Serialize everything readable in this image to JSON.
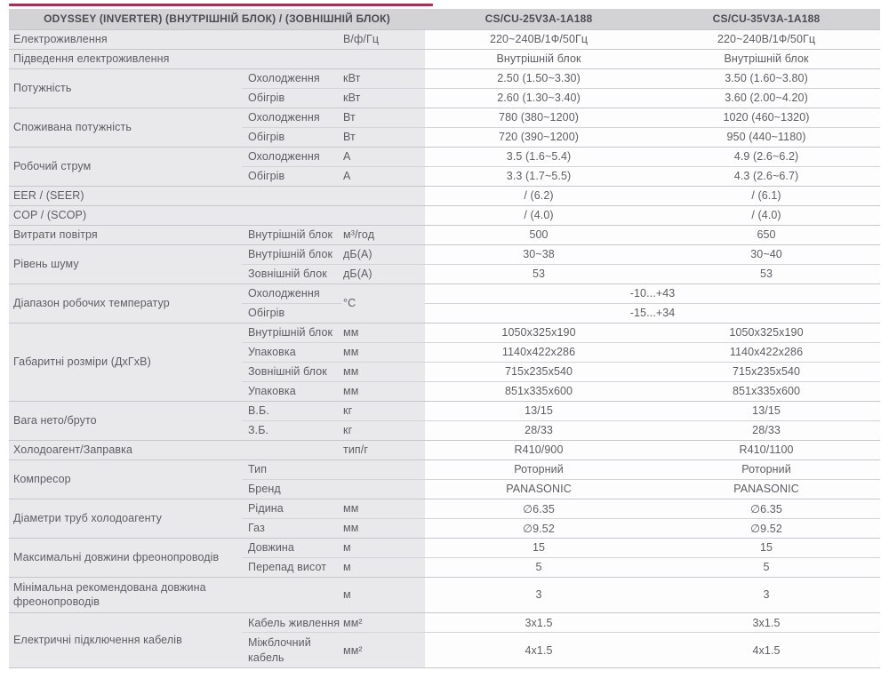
{
  "accent_color": "#b52a52",
  "colors": {
    "header_bg": "#d3d3d6",
    "label_bg": "#e9e9eb",
    "value_bg": "#fdfdfe",
    "border_strong": "#c6c6cb",
    "border_soft": "#d4d4d8"
  },
  "header": {
    "title": "ODYSSEY (INVERTER) (ВНУТРІШНІЙ БЛОК) / (ЗОВНІШНІЙ БЛОК)",
    "models": [
      "CS/CU-25V3A-1A188",
      "CS/CU-35V3A-1A188"
    ]
  },
  "groups": [
    {
      "label": "Електроживлення",
      "rows": [
        {
          "unit": "В/ф/Гц",
          "v1": "220~240В/1Ф/50Гц",
          "v2": "220~240В/1Ф/50Гц"
        }
      ]
    },
    {
      "label": "Підведення електроживлення",
      "rows": [
        {
          "v1": "Внутрішній блок",
          "v2": "Внутрішній блок"
        }
      ]
    },
    {
      "label": "Потужність",
      "rows": [
        {
          "sub": "Охолодження",
          "unit": "кВт",
          "v1": "2.50 (1.50~3.30)",
          "v2": "3.50 (1.60~3.80)"
        },
        {
          "sub": "Обігрів",
          "unit": "кВт",
          "v1": "2.60 (1.30~3.40)",
          "v2": "3.60 (2.00~4.20)"
        }
      ]
    },
    {
      "label": "Споживана потужність",
      "rows": [
        {
          "sub": "Охолодження",
          "unit": "Вт",
          "v1": "780 (380~1200)",
          "v2": "1020 (460~1320)"
        },
        {
          "sub": "Обігрів",
          "unit": "Вт",
          "v1": "720 (390~1200)",
          "v2": "950 (440~1180)"
        }
      ]
    },
    {
      "label": "Робочий струм",
      "rows": [
        {
          "sub": "Охолодження",
          "unit": "А",
          "v1": "3.5 (1.6~5.4)",
          "v2": "4.9 (2.6~6.2)"
        },
        {
          "sub": "Обігрів",
          "unit": "А",
          "v1": "3.3 (1.7~5.5)",
          "v2": "4.3 (2.6~6.7)"
        }
      ]
    },
    {
      "label": "EER / (SEER)",
      "rows": [
        {
          "v1": "/ (6.2)",
          "v2": "/ (6.1)"
        }
      ]
    },
    {
      "label": "COP / (SCOP)",
      "rows": [
        {
          "v1": "/ (4.0)",
          "v2": "/ (4.0)"
        }
      ]
    },
    {
      "label": "Витрати повітря",
      "rows": [
        {
          "sub": "Внутрішній блок",
          "unit": "м³/год",
          "v1": "500",
          "v2": "650"
        }
      ]
    },
    {
      "label": "Рівень шуму",
      "rows": [
        {
          "sub": "Внутрішній блок",
          "unit": "дБ(А)",
          "v1": "30~38",
          "v2": "30~40"
        },
        {
          "sub": "Зовнішній блок",
          "unit": "дБ(А)",
          "v1": "53",
          "v2": "53"
        }
      ]
    },
    {
      "label": "Діапазон робочих температур",
      "unit": "°С",
      "rows": [
        {
          "sub": "Охолодження",
          "span_value": "-10...+43"
        },
        {
          "sub": "Обігрів",
          "span_value": "-15...+34"
        }
      ]
    },
    {
      "label": "Габаритні розміри (ДхГхВ)",
      "rows": [
        {
          "sub": "Внутрішній блок",
          "unit": "мм",
          "v1": "1050x325x190",
          "v2": "1050x325x190"
        },
        {
          "sub": "Упаковка",
          "unit": "мм",
          "v1": "1140x422x286",
          "v2": "1140x422x286"
        },
        {
          "sub": "Зовнішній блок",
          "unit": "мм",
          "v1": "715x235x540",
          "v2": "715x235x540"
        },
        {
          "sub": "Упаковка",
          "unit": "мм",
          "v1": "851x335x600",
          "v2": "851x335x600"
        }
      ]
    },
    {
      "label": "Вага нето/бруто",
      "rows": [
        {
          "sub": "В.Б.",
          "unit": "кг",
          "v1": "13/15",
          "v2": "13/15"
        },
        {
          "sub": "З.Б.",
          "unit": "кг",
          "v1": "28/33",
          "v2": "28/33"
        }
      ]
    },
    {
      "label": "Холодоагент/Заправка",
      "rows": [
        {
          "unit": "тип/г",
          "v1": "R410/900",
          "v2": "R410/1100"
        }
      ]
    },
    {
      "label": "Компресор",
      "rows": [
        {
          "sub": "Тип",
          "v1": "Роторний",
          "v2": "Роторний"
        },
        {
          "sub": "Бренд",
          "v1": "PANASONIC",
          "v2": "PANASONIC"
        }
      ]
    },
    {
      "label": "Діаметри труб холодоагенту",
      "rows": [
        {
          "sub": "Рідина",
          "unit": "мм",
          "v1": "∅6.35",
          "v2": "∅6.35"
        },
        {
          "sub": "Газ",
          "unit": "мм",
          "v1": "∅9.52",
          "v2": "∅9.52"
        }
      ]
    },
    {
      "label": "Максимальні довжини фреонопроводів",
      "rows": [
        {
          "sub": "Довжина",
          "unit": "м",
          "v1": "15",
          "v2": "15"
        },
        {
          "sub": "Перепад висот",
          "unit": "м",
          "v1": "5",
          "v2": "5"
        }
      ]
    },
    {
      "label": "Мінімальна рекомендована довжина фреонопроводів",
      "rows": [
        {
          "unit": "м",
          "v1": "3",
          "v2": "3"
        }
      ]
    },
    {
      "label": "Електричні підключення кабелів",
      "rows": [
        {
          "sub": "Кабель живлення",
          "unit": "мм²",
          "v1": "3x1.5",
          "v2": "3x1.5"
        },
        {
          "sub": "Міжблочний кабель",
          "unit": "мм²",
          "v1": "4x1.5",
          "v2": "4x1.5"
        }
      ]
    }
  ]
}
